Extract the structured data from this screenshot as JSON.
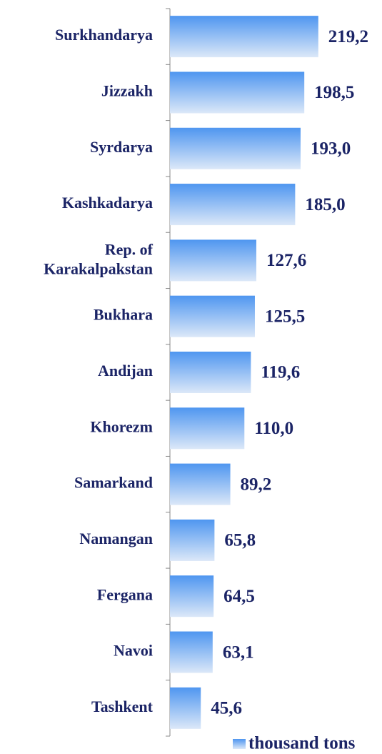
{
  "chart_data": {
    "type": "bar",
    "orientation": "horizontal",
    "categories": [
      "Surkhandarya",
      "Jizzakh",
      "Syrdarya",
      "Kashkadarya",
      "Rep. of Karakalpakstan",
      "Bukhara",
      "Andijan",
      "Khorezm",
      "Samarkand",
      "Namangan",
      "Fergana",
      "Navoi",
      "Tashkent"
    ],
    "series": [
      {
        "name": "thousand tons",
        "color": "#4f96f0",
        "values": [
          219.2,
          198.5,
          193.0,
          185.0,
          127.6,
          125.5,
          119.6,
          110.0,
          89.2,
          65.8,
          64.5,
          63.1,
          45.6
        ],
        "value_labels": [
          "219,2",
          "198,5",
          "193,0",
          "185,0",
          "127,6",
          "125,5",
          "119,6",
          "110,0",
          "89,2",
          "65,8",
          "64,5",
          "63,1",
          "45,6"
        ]
      }
    ],
    "xlim": [
      0,
      250
    ],
    "legend": "bottom"
  }
}
